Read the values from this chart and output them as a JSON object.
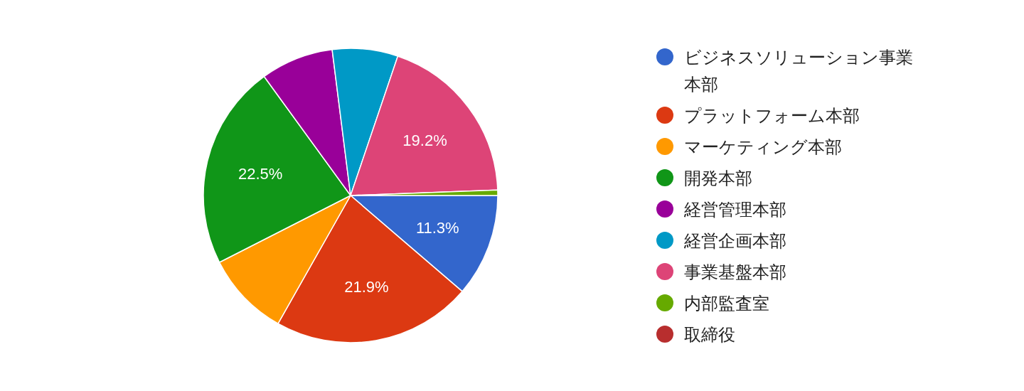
{
  "chart_data": {
    "type": "pie",
    "categories": [
      "ビジネスソリューション事業本部",
      "プラットフォーム本部",
      "マーケティング本部",
      "開発本部",
      "経営管理本部",
      "経営企画本部",
      "事業基盤本部",
      "内部監査室",
      "取締役"
    ],
    "values": [
      11.3,
      21.9,
      9.3,
      22.5,
      8.0,
      7.2,
      19.2,
      0.6,
      0
    ],
    "value_labels": [
      "11.3%",
      "21.9%",
      null,
      "22.5%",
      null,
      null,
      "19.2%",
      null,
      null
    ],
    "colors": [
      "#3366cc",
      "#dc3912",
      "#ff9900",
      "#109618",
      "#990099",
      "#0099c6",
      "#dd4477",
      "#66aa00",
      "#b82e2e"
    ],
    "legend": "right"
  }
}
